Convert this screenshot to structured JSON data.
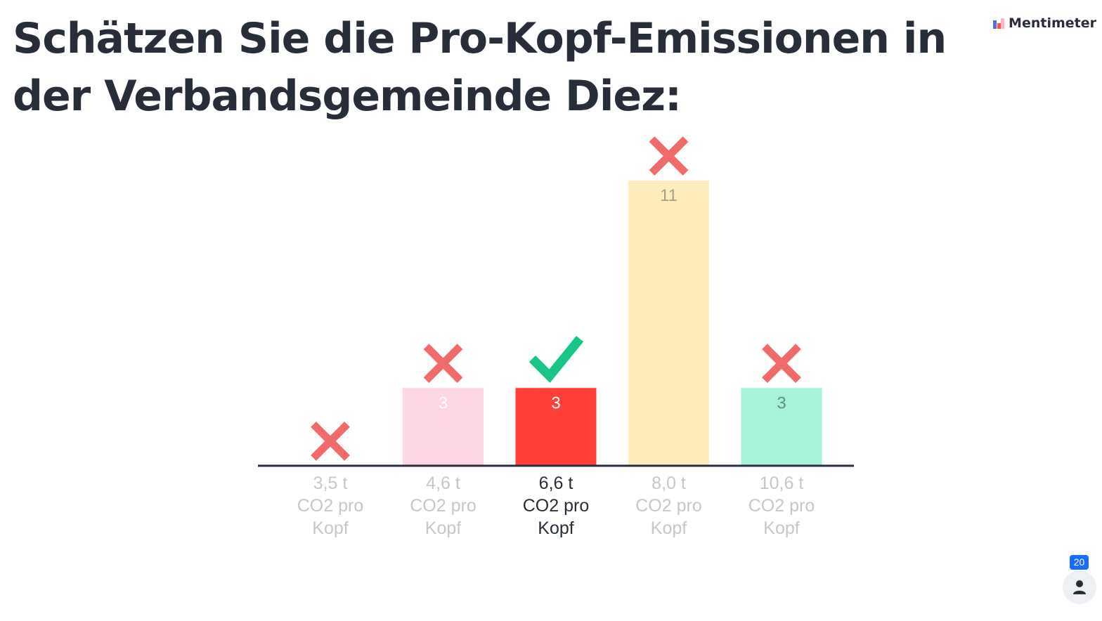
{
  "header": {
    "title": "Schätzen Sie die Pro-Kopf-Emissionen in der Verbandsgemeinde Diez:",
    "brand_name": "Mentimeter"
  },
  "participants": {
    "count": "20",
    "icon": "person-icon"
  },
  "colors": {
    "axis": "#272e3a",
    "cross": "#f26b6b",
    "check": "#19c688",
    "label_dim": "#c4c7cc",
    "label_active": "#272e3a"
  },
  "chart_data": {
    "type": "bar",
    "categories": [
      [
        "3,5 t",
        "CO2 pro",
        "Kopf"
      ],
      [
        "4,6 t",
        "CO2 pro",
        "Kopf"
      ],
      [
        "6,6 t",
        "CO2 pro",
        "Kopf"
      ],
      [
        "8,0 t",
        "CO2 pro",
        "Kopf"
      ],
      [
        "10,6 t",
        "CO2 pro",
        "Kopf"
      ]
    ],
    "values": [
      0,
      3,
      3,
      11,
      3
    ],
    "value_labels": [
      "",
      "3",
      "3",
      "11",
      "3"
    ],
    "bar_colors": [
      "#ffd6e5",
      "#ffd6e5",
      "#ff403a",
      "#ffedbd",
      "#a8f2d9"
    ],
    "value_label_colors": [
      "#ffffff",
      "#ffffff",
      "#ffffff",
      "#a79f86",
      "#5f8f80"
    ],
    "correct": [
      false,
      false,
      true,
      false,
      false
    ],
    "markers": [
      "cross-icon",
      "cross-icon",
      "check-icon",
      "cross-icon",
      "cross-icon"
    ],
    "highlighted_index": 2,
    "ylim": [
      0,
      11
    ],
    "grid": false,
    "legend": "none",
    "title": "",
    "xlabel": "",
    "ylabel": ""
  }
}
